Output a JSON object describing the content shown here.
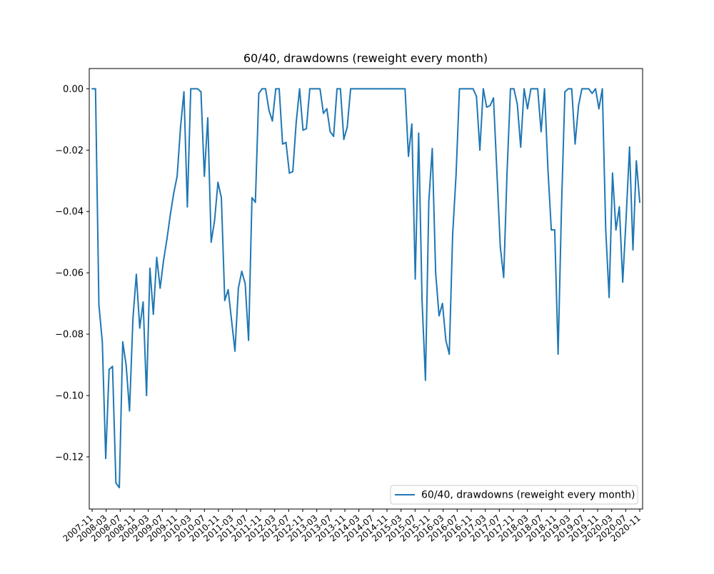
{
  "chart_data": {
    "type": "line",
    "title": "60/40, drawdowns (reweight every month)",
    "xlabel": "",
    "ylabel": "",
    "ylim": [
      -0.137,
      0.0066
    ],
    "yticks": [
      0.0,
      -0.02,
      -0.04,
      -0.06,
      -0.08,
      -0.1,
      -0.12
    ],
    "ytick_labels": [
      "0.00",
      "−0.02",
      "−0.04",
      "−0.06",
      "−0.08",
      "−0.10",
      "−0.12"
    ],
    "xtick_labels": [
      "2007-11",
      "2008-03",
      "2008-07",
      "2008-11",
      "2009-03",
      "2009-07",
      "2009-11",
      "2010-03",
      "2010-07",
      "2010-11",
      "2011-03",
      "2011-07",
      "2011-11",
      "2012-03",
      "2012-07",
      "2012-11",
      "2013-03",
      "2013-07",
      "2013-11",
      "2014-03",
      "2014-07",
      "2014-11",
      "2015-03",
      "2015-07",
      "2015-11",
      "2016-03",
      "2016-07",
      "2016-11",
      "2017-03",
      "2017-07",
      "2017-11",
      "2018-03",
      "2018-07",
      "2018-11",
      "2019-03",
      "2019-07",
      "2019-11",
      "2020-03",
      "2020-07",
      "2020-11"
    ],
    "grid": false,
    "legend_position": "lower-right",
    "series": [
      {
        "name": "60/40, drawdowns (reweight every month)",
        "color": "#1f77b4",
        "values": [
          0,
          0,
          -0.0705,
          -0.0825,
          -0.1205,
          -0.0915,
          -0.0905,
          -0.1285,
          -0.13,
          -0.0825,
          -0.09,
          -0.105,
          -0.075,
          -0.0605,
          -0.078,
          -0.0695,
          -0.1,
          -0.0585,
          -0.0735,
          -0.055,
          -0.065,
          -0.056,
          -0.049,
          -0.041,
          -0.034,
          -0.0285,
          -0.0125,
          -0.001,
          -0.0385,
          0,
          0,
          0,
          -0.001,
          -0.0285,
          -0.0095,
          -0.05,
          -0.043,
          -0.0305,
          -0.0355,
          -0.069,
          -0.0655,
          -0.0755,
          -0.0855,
          -0.065,
          -0.0595,
          -0.0635,
          -0.082,
          -0.0355,
          -0.037,
          -0.0015,
          0,
          0,
          -0.007,
          -0.0105,
          0,
          0,
          -0.018,
          -0.0175,
          -0.0275,
          -0.027,
          -0.011,
          0,
          -0.0135,
          -0.013,
          0,
          0,
          0,
          0,
          -0.008,
          -0.0065,
          -0.014,
          -0.0155,
          0,
          0,
          -0.0165,
          -0.0125,
          0,
          0,
          0,
          0,
          0,
          0,
          0,
          0,
          0,
          0,
          0,
          0,
          0,
          0,
          0,
          0,
          0,
          -0.022,
          -0.0115,
          -0.062,
          -0.0145,
          -0.069,
          -0.095,
          -0.0365,
          -0.0195,
          -0.06,
          -0.074,
          -0.07,
          -0.082,
          -0.0865,
          -0.0475,
          -0.028,
          0,
          0,
          0,
          0,
          0,
          -0.0025,
          -0.02,
          0,
          -0.006,
          -0.0055,
          -0.003,
          -0.027,
          -0.0515,
          -0.0615,
          -0.027,
          0,
          0,
          -0.005,
          -0.019,
          0,
          -0.0065,
          0,
          0,
          0,
          -0.014,
          0,
          -0.026,
          -0.046,
          -0.046,
          -0.0865,
          -0.0385,
          -0.001,
          0,
          0,
          -0.018,
          -0.0055,
          0,
          0,
          0,
          -0.0015,
          0,
          -0.0065,
          0,
          -0.046,
          -0.068,
          -0.0275,
          -0.046,
          -0.0385,
          -0.063,
          -0.042,
          -0.019,
          -0.0525,
          -0.0235,
          -0.037
        ]
      }
    ]
  }
}
